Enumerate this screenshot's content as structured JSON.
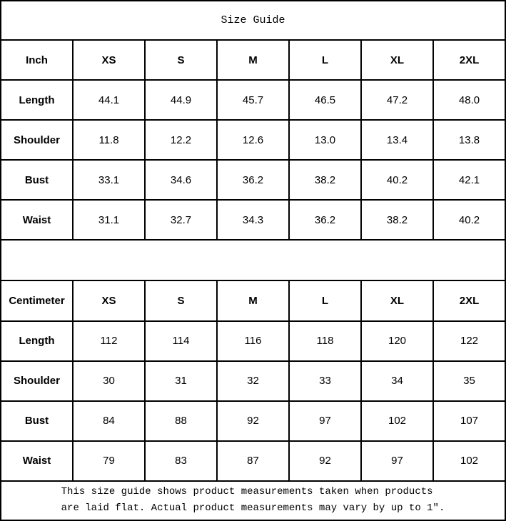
{
  "title": "Size Guide",
  "colors": {
    "background": "#ffffff",
    "border": "#000000",
    "text": "#000000"
  },
  "sizes": [
    "XS",
    "S",
    "M",
    "L",
    "XL",
    "2XL"
  ],
  "inch_table": {
    "unit_label": "Inch",
    "rows": [
      {
        "label": "Length",
        "values": [
          "44.1",
          "44.9",
          "45.7",
          "46.5",
          "47.2",
          "48.0"
        ]
      },
      {
        "label": "Shoulder",
        "values": [
          "11.8",
          "12.2",
          "12.6",
          "13.0",
          "13.4",
          "13.8"
        ]
      },
      {
        "label": "Bust",
        "values": [
          "33.1",
          "34.6",
          "36.2",
          "38.2",
          "40.2",
          "42.1"
        ]
      },
      {
        "label": "Waist",
        "values": [
          "31.1",
          "32.7",
          "34.3",
          "36.2",
          "38.2",
          "40.2"
        ]
      }
    ]
  },
  "cm_table": {
    "unit_label": "Centimeter",
    "rows": [
      {
        "label": "Length",
        "values": [
          "112",
          "114",
          "116",
          "118",
          "120",
          "122"
        ]
      },
      {
        "label": "Shoulder",
        "values": [
          "30",
          "31",
          "32",
          "33",
          "34",
          "35"
        ]
      },
      {
        "label": "Bust",
        "values": [
          "84",
          "88",
          "92",
          "97",
          "102",
          "107"
        ]
      },
      {
        "label": "Waist",
        "values": [
          "79",
          "83",
          "87",
          "92",
          "97",
          "102"
        ]
      }
    ]
  },
  "footer": {
    "line1": "This size guide shows product measurements taken when products",
    "line2": "are laid flat. Actual product measurements may vary by up to 1″."
  },
  "chart_data": [
    {
      "type": "table",
      "title": "Size Guide (Inch)",
      "columns": [
        "Inch",
        "XS",
        "S",
        "M",
        "L",
        "XL",
        "2XL"
      ],
      "rows": [
        [
          "Length",
          44.1,
          44.9,
          45.7,
          46.5,
          47.2,
          48.0
        ],
        [
          "Shoulder",
          11.8,
          12.2,
          12.6,
          13.0,
          13.4,
          13.8
        ],
        [
          "Bust",
          33.1,
          34.6,
          36.2,
          38.2,
          40.2,
          42.1
        ],
        [
          "Waist",
          31.1,
          32.7,
          34.3,
          36.2,
          38.2,
          40.2
        ]
      ]
    },
    {
      "type": "table",
      "title": "Size Guide (Centimeter)",
      "columns": [
        "Centimeter",
        "XS",
        "S",
        "M",
        "L",
        "XL",
        "2XL"
      ],
      "rows": [
        [
          "Length",
          112,
          114,
          116,
          118,
          120,
          122
        ],
        [
          "Shoulder",
          30,
          31,
          32,
          33,
          34,
          35
        ],
        [
          "Bust",
          84,
          88,
          92,
          97,
          102,
          107
        ],
        [
          "Waist",
          79,
          83,
          87,
          92,
          97,
          102
        ]
      ]
    }
  ]
}
